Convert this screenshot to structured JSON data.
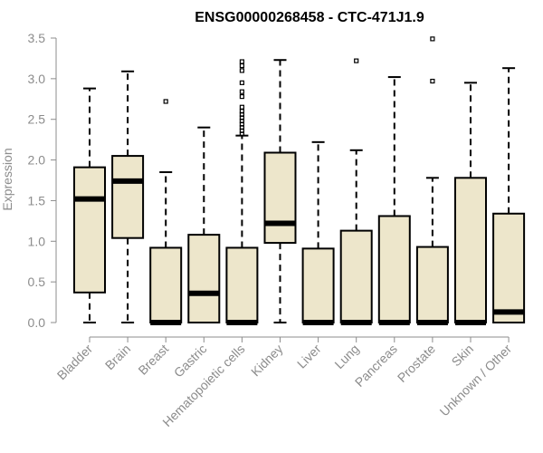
{
  "chart_data": {
    "type": "boxplot",
    "title": "ENSG00000268458 - CTC-471J1.9",
    "xlabel": "",
    "ylabel": "Expression",
    "ylim": [
      0,
      3.5
    ],
    "yticks": [
      "0.0",
      "0.5",
      "1.0",
      "1.5",
      "2.0",
      "2.5",
      "3.0",
      "3.5"
    ],
    "colors": {
      "box_fill": "#ede6cb",
      "axis": "#8c8c8c",
      "ink": "#000000"
    },
    "categories": [
      "Bladder",
      "Brain",
      "Breast",
      "Gastric",
      "Hematopoietic cells",
      "Kidney",
      "Liver",
      "Lung",
      "Pancreas",
      "Prostate",
      "Skin",
      "Unknown / Other"
    ],
    "boxes": [
      {
        "min": 0.0,
        "q1": 0.37,
        "median": 1.52,
        "q3": 1.91,
        "max": 2.88,
        "outliers": []
      },
      {
        "min": 0.0,
        "q1": 1.04,
        "median": 1.74,
        "q3": 2.05,
        "max": 3.09,
        "outliers": []
      },
      {
        "min": 0.0,
        "q1": 0.0,
        "median": 0.0,
        "q3": 0.92,
        "max": 1.85,
        "outliers": [
          2.72
        ]
      },
      {
        "min": 0.0,
        "q1": 0.0,
        "median": 0.36,
        "q3": 1.08,
        "max": 2.4,
        "outliers": []
      },
      {
        "min": 0.0,
        "q1": 0.0,
        "median": 0.0,
        "q3": 0.92,
        "max": 2.3,
        "outliers": [
          2.32,
          2.36,
          2.4,
          2.44,
          2.48,
          2.52,
          2.56,
          2.6,
          2.65,
          2.78,
          2.84,
          2.95,
          3.1,
          3.16,
          3.21
        ]
      },
      {
        "min": 0.0,
        "q1": 0.98,
        "median": 1.22,
        "q3": 2.09,
        "max": 3.23,
        "outliers": []
      },
      {
        "min": 0.0,
        "q1": 0.0,
        "median": 0.0,
        "q3": 0.91,
        "max": 2.22,
        "outliers": []
      },
      {
        "min": 0.0,
        "q1": 0.0,
        "median": 0.0,
        "q3": 1.13,
        "max": 2.12,
        "outliers": [
          3.22
        ]
      },
      {
        "min": 0.0,
        "q1": 0.0,
        "median": 0.0,
        "q3": 1.31,
        "max": 3.02,
        "outliers": []
      },
      {
        "min": 0.0,
        "q1": 0.0,
        "median": 0.0,
        "q3": 0.93,
        "max": 1.78,
        "outliers": [
          2.97,
          3.49
        ]
      },
      {
        "min": 0.0,
        "q1": 0.0,
        "median": 0.0,
        "q3": 1.78,
        "max": 2.95,
        "outliers": []
      },
      {
        "min": 0.0,
        "q1": 0.0,
        "median": 0.13,
        "q3": 1.34,
        "max": 3.13,
        "outliers": []
      }
    ]
  }
}
